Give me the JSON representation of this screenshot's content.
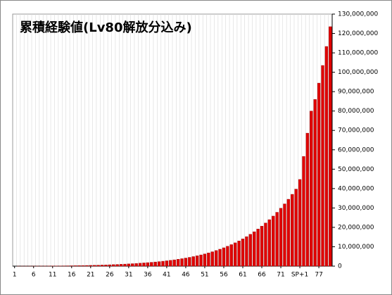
{
  "chart_data": {
    "type": "bar",
    "title": "累積経験値(Lv80解放分込み)",
    "categories": [
      "1",
      null,
      null,
      null,
      null,
      "6",
      null,
      null,
      null,
      null,
      "11",
      null,
      null,
      null,
      null,
      "16",
      null,
      null,
      null,
      null,
      "21",
      null,
      null,
      null,
      null,
      "26",
      null,
      null,
      null,
      null,
      "31",
      null,
      null,
      null,
      null,
      "36",
      null,
      null,
      null,
      null,
      "41",
      null,
      null,
      null,
      null,
      "46",
      null,
      null,
      null,
      null,
      "51",
      null,
      null,
      null,
      null,
      "56",
      null,
      null,
      null,
      null,
      "61",
      null,
      null,
      null,
      null,
      "66",
      null,
      null,
      null,
      null,
      "71",
      null,
      null,
      null,
      null,
      "SP+1",
      null,
      null,
      null,
      null,
      "77",
      null,
      null,
      null
    ],
    "values": [
      0,
      1000,
      3000,
      6000,
      10000,
      16000,
      24000,
      34000,
      46000,
      60000,
      76000,
      95000,
      116000,
      140000,
      167000,
      197000,
      230000,
      266000,
      306000,
      350000,
      398000,
      450000,
      507000,
      569000,
      636000,
      708000,
      786000,
      870000,
      960000,
      1056000,
      1160000,
      1270000,
      1390000,
      1520000,
      1660000,
      1810000,
      1970000,
      2140000,
      2330000,
      2530000,
      2750000,
      2990000,
      3250000,
      3530000,
      3840000,
      4170000,
      4530000,
      4920000,
      5340000,
      5800000,
      6300000,
      6840000,
      7420000,
      8050000,
      8730000,
      9460000,
      10250000,
      11100000,
      12020000,
      13010000,
      14070000,
      15210000,
      16430000,
      17740000,
      19140000,
      20640000,
      22250000,
      23970000,
      25810000,
      27770000,
      29870000,
      32110000,
      34500000,
      37040000,
      39740000,
      44700000,
      56600000,
      68600000,
      80000000,
      86000000,
      94400000,
      103500000,
      113300000,
      123500000
    ],
    "color": "#e00000",
    "ylim": [
      0,
      130000000
    ],
    "yticks": [
      0,
      {
        "value": 10000000,
        "label": "10,000,000"
      },
      {
        "value": 20000000,
        "label": "20,000,000"
      },
      {
        "value": 30000000,
        "label": "30,000,000"
      },
      {
        "value": 40000000,
        "label": "40,000,000"
      },
      {
        "value": 50000000,
        "label": "50,000,000"
      },
      {
        "value": 60000000,
        "label": "60,000,000"
      },
      {
        "value": 70000000,
        "label": "70,000,000"
      },
      {
        "value": 80000000,
        "label": "80,000,000"
      },
      {
        "value": 90000000,
        "label": "90,000,000"
      },
      {
        "value": 100000000,
        "label": "100,000,000"
      },
      {
        "value": 110000000,
        "label": "110,000,000"
      },
      {
        "value": 120000000,
        "label": "120,000,000"
      },
      {
        "value": 130000000,
        "label": "130,000,000"
      }
    ],
    "grid": true
  }
}
